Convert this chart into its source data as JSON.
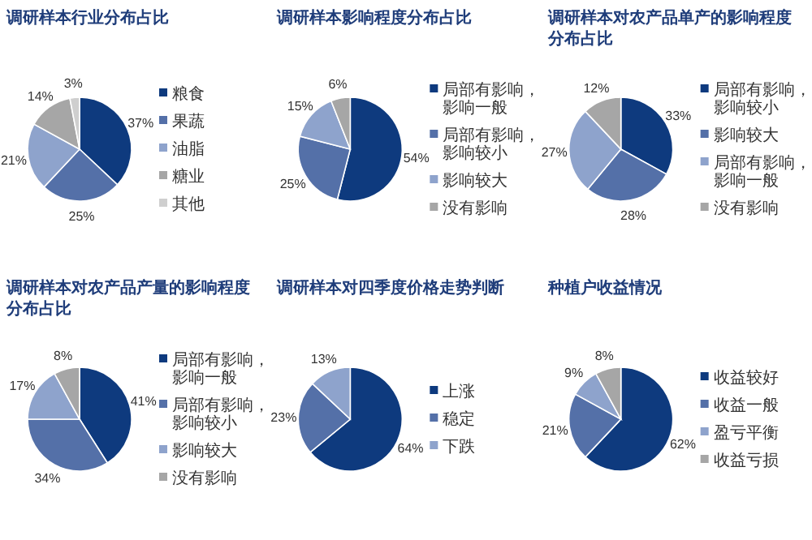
{
  "chart_data": [
    {
      "type": "pie",
      "title": "调研样本行业分布占比",
      "categories": [
        "粮食",
        "果蔬",
        "油脂",
        "糖业",
        "其他"
      ],
      "values": [
        37,
        25,
        21,
        14,
        3
      ],
      "value_labels": [
        "37%",
        "25%",
        "21%",
        "14%",
        "3%"
      ],
      "colors": [
        "#0e3a7e",
        "#5470a8",
        "#8ea3cc",
        "#a6a6a6",
        "#cfcfcf"
      ],
      "legend": "right"
    },
    {
      "type": "pie",
      "title": "调研样本影响程度分布占比",
      "categories": [
        "局部有影响，影响一般",
        "局部有影响，影响较小",
        "影响较大",
        "没有影响"
      ],
      "values": [
        54,
        25,
        15,
        6
      ],
      "value_labels": [
        "54%",
        "25%",
        "15%",
        "6%"
      ],
      "colors": [
        "#0e3a7e",
        "#5470a8",
        "#8ea3cc",
        "#a6a6a6"
      ],
      "legend": "right"
    },
    {
      "type": "pie",
      "title": "调研样本对农产品单产的影响程度分布占比",
      "categories": [
        "局部有影响，影响较小",
        "影响较大",
        "局部有影响，影响一般",
        "没有影响"
      ],
      "values": [
        33,
        28,
        27,
        12
      ],
      "value_labels": [
        "33%",
        "28%",
        "27%",
        "12%"
      ],
      "colors": [
        "#0e3a7e",
        "#5470a8",
        "#8ea3cc",
        "#a6a6a6"
      ],
      "legend": "right"
    },
    {
      "type": "pie",
      "title": "调研样本对农产品产量的影响程度分布占比",
      "categories": [
        "局部有影响，影响一般",
        "局部有影响，影响较小",
        "影响较大",
        "没有影响"
      ],
      "values": [
        41,
        34,
        17,
        8
      ],
      "value_labels": [
        "41%",
        "34%",
        "17%",
        "8%"
      ],
      "colors": [
        "#0e3a7e",
        "#5470a8",
        "#8ea3cc",
        "#a6a6a6"
      ],
      "legend": "right"
    },
    {
      "type": "pie",
      "title": "调研样本对四季度价格走势判断",
      "categories": [
        "上涨",
        "稳定",
        "下跌"
      ],
      "values": [
        64,
        23,
        13
      ],
      "value_labels": [
        "64%",
        "23%",
        "13%"
      ],
      "colors": [
        "#0e3a7e",
        "#5470a8",
        "#8ea3cc"
      ],
      "legend": "right"
    },
    {
      "type": "pie",
      "title": "种植户收益情况",
      "categories": [
        "收益较好",
        "收益一般",
        "盈亏平衡",
        "收益亏损"
      ],
      "values": [
        62,
        21,
        9,
        8
      ],
      "value_labels": [
        "62%",
        "21%",
        "9%",
        "8%"
      ],
      "colors": [
        "#0e3a7e",
        "#5470a8",
        "#8ea3cc",
        "#a6a6a6"
      ],
      "legend": "right"
    }
  ]
}
